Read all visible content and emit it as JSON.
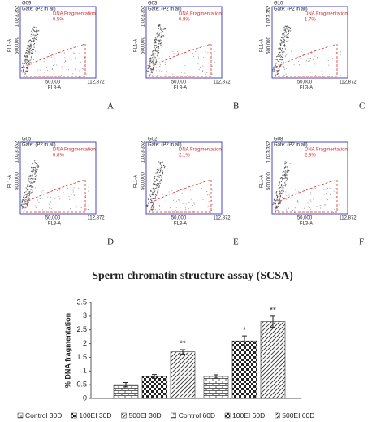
{
  "panel_axes": {
    "x_label": "FL3-A",
    "y_label": "FL1-A",
    "xticks": [
      "50,000",
      "112,872"
    ],
    "yticks": [
      "1,023,352",
      "500,000"
    ]
  },
  "panels": [
    {
      "id": "G09",
      "gate": "Gate: (P2 in all)",
      "gate_label": "DNA Fragmentation",
      "percent": "0.5%",
      "letter": "A"
    },
    {
      "id": "G03",
      "gate": "Gate: (P2 in all)",
      "gate_label": "DNA Fragmentation",
      "percent": "0.8%",
      "letter": "B"
    },
    {
      "id": "G10",
      "gate": "Gate: (P2 in all)",
      "gate_label": "DNA Fragmentation",
      "percent": "1.7%",
      "letter": "C"
    },
    {
      "id": "G05",
      "gate": "Gate: (P2 in all)",
      "gate_label": "DNA Fragmentation",
      "percent": "0.8%",
      "letter": "D"
    },
    {
      "id": "G02",
      "gate": "Gate: (P2 in all)",
      "gate_label": "DNA Fragmentation",
      "percent": "2.1%",
      "letter": "E"
    },
    {
      "id": "G08",
      "gate": "Gate: (P2 in all)",
      "gate_label": "DNA Fragmentation",
      "percent": "2.8%",
      "letter": "F"
    }
  ],
  "chart_data": {
    "type": "bar",
    "title": "Sperm chromatin structure assay (SCSA)",
    "y_label": "% DNA fragmentation",
    "categories": [
      null,
      null
    ],
    "ylim": [
      0,
      3.5
    ],
    "yticks": [
      0,
      0.5,
      1,
      1.5,
      2,
      2.5,
      3,
      3.5
    ],
    "series": [
      {
        "name": "Control 30D",
        "pattern": "brick",
        "values": [
          0.5,
          null
        ],
        "errors": [
          0.08,
          null
        ],
        "sig": [
          null,
          null
        ]
      },
      {
        "name": "100EI 30D",
        "pattern": "check",
        "values": [
          0.8,
          null
        ],
        "errors": [
          0.07,
          null
        ],
        "sig": [
          null,
          null
        ]
      },
      {
        "name": "500EI 30D",
        "pattern": "diag",
        "values": [
          1.7,
          null
        ],
        "errors": [
          0.08,
          null
        ],
        "sig": [
          "**",
          null
        ]
      },
      {
        "name": "Control 60D",
        "pattern": "brick",
        "values": [
          null,
          0.8
        ],
        "errors": [
          null,
          0.06
        ],
        "sig": [
          null,
          null
        ]
      },
      {
        "name": "100EI 60D",
        "pattern": "check",
        "values": [
          null,
          2.1
        ],
        "errors": [
          null,
          0.18
        ],
        "sig": [
          null,
          "*"
        ]
      },
      {
        "name": "500EI 60D",
        "pattern": "diag",
        "values": [
          null,
          2.8
        ],
        "errors": [
          null,
          0.2
        ],
        "sig": [
          null,
          "**"
        ]
      }
    ]
  }
}
